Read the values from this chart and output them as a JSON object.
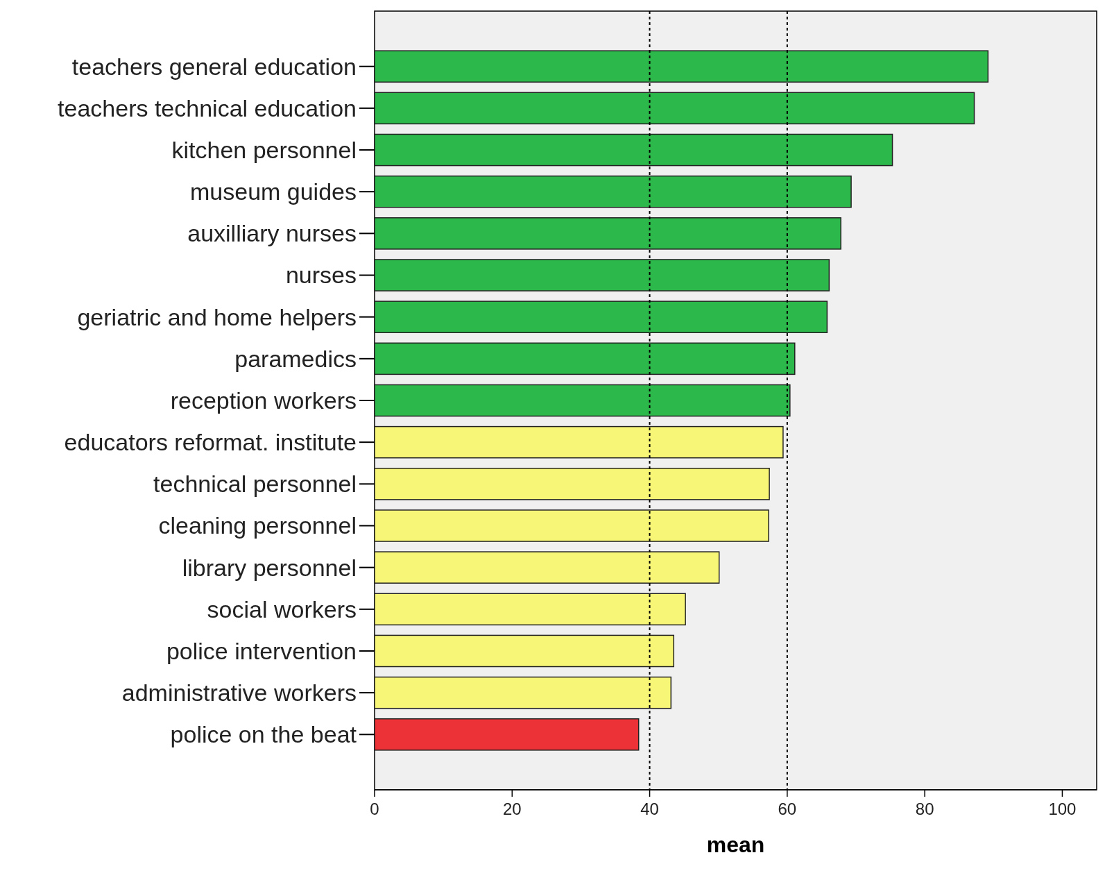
{
  "chart_data": {
    "type": "bar",
    "orientation": "horizontal",
    "xlabel": "mean",
    "categories": [
      "teachers general education",
      "teachers technical education",
      "kitchen personnel",
      "museum guides",
      "auxilliary nurses",
      "nurses",
      "geriatric and home helpers",
      "paramedics",
      "reception workers",
      "educators reformat. institute",
      "technical personnel",
      "cleaning personnel",
      "library personnel",
      "social workers",
      "police intervention",
      "administrative workers",
      "police on the beat"
    ],
    "values": [
      89.2,
      87.2,
      75.3,
      69.3,
      67.8,
      66.1,
      65.8,
      61.1,
      60.4,
      59.4,
      57.4,
      57.3,
      50.1,
      45.2,
      43.5,
      43.1,
      38.4
    ],
    "colors": [
      "#2db84b",
      "#2db84b",
      "#2db84b",
      "#2db84b",
      "#2db84b",
      "#2db84b",
      "#2db84b",
      "#2db84b",
      "#2db84b",
      "#f8f676",
      "#f8f676",
      "#f8f676",
      "#f8f676",
      "#f8f676",
      "#f8f676",
      "#f8f676",
      "#ec3237"
    ],
    "xlim": [
      0,
      105
    ],
    "xticks": [
      0,
      20,
      40,
      60,
      80,
      100
    ],
    "grid": false,
    "ref_lines": [
      {
        "axis": "x",
        "value": 40,
        "line_style": "dotted",
        "color": "#000000"
      },
      {
        "axis": "x",
        "value": 60,
        "line_style": "dotted",
        "color": "#000000"
      }
    ]
  }
}
